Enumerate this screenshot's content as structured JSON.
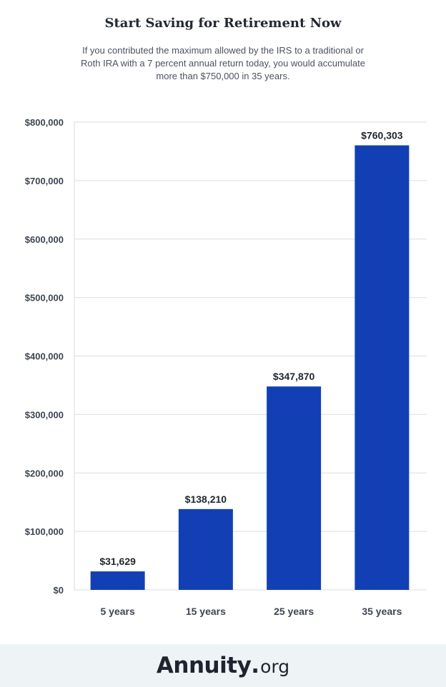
{
  "title": "Start Saving for Retirement Now",
  "subtitle": "If you contributed the maximum allowed by the IRS to a traditional or Roth IRA with a 7 percent annual return today, you would accumulate more than $750,000 in 35 years.",
  "colors": {
    "bar": "#1240b4",
    "grid": "#d9dde3",
    "tick": "#3d4552",
    "label": "#222831"
  },
  "chart_data": {
    "type": "bar",
    "categories": [
      "5 years",
      "15 years",
      "25 years",
      "35 years"
    ],
    "values": [
      31629,
      138210,
      347870,
      760303
    ],
    "value_labels": [
      "$31,629",
      "$138,210",
      "$347,870",
      "$760,303"
    ],
    "ylim": [
      0,
      800000
    ],
    "yticks": [
      0,
      100000,
      200000,
      300000,
      400000,
      500000,
      600000,
      700000,
      800000
    ],
    "ytick_labels": [
      "$0",
      "$100,000",
      "$200,000",
      "$300,000",
      "$400,000",
      "$500,000",
      "$600,000",
      "$700,000",
      "$800,000"
    ],
    "grid": true
  },
  "footer": {
    "logo_main": "Annuity",
    "logo_dot": ".",
    "logo_tld": "org"
  }
}
